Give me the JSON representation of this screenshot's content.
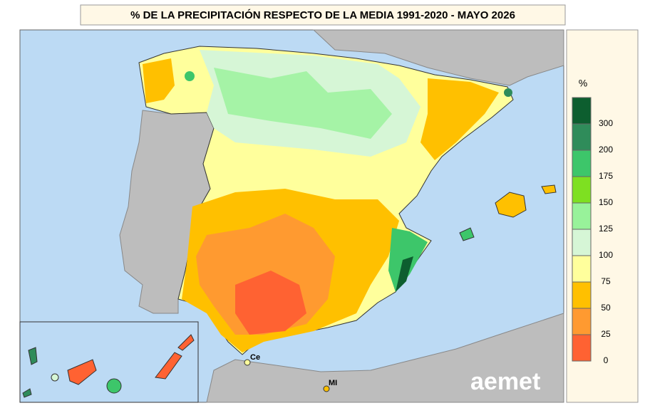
{
  "title": "% DE LA PRECIPITACIÓN RESPECTO DE LA MEDIA 1991-2020 - MAYO 2026",
  "legend": {
    "unit": "%",
    "colors": [
      "#0d5e2f",
      "#2f8c5a",
      "#3dc66a",
      "#7ee021",
      "#98f29a",
      "#d6f6d6",
      "#ffff9c",
      "#ffc000",
      "#ff9a30",
      "#ff6232"
    ],
    "labels": [
      300,
      200,
      175,
      150,
      125,
      100,
      75,
      50,
      25,
      0
    ]
  },
  "places": [
    "Ce",
    "MI"
  ],
  "logo": "aemet"
}
